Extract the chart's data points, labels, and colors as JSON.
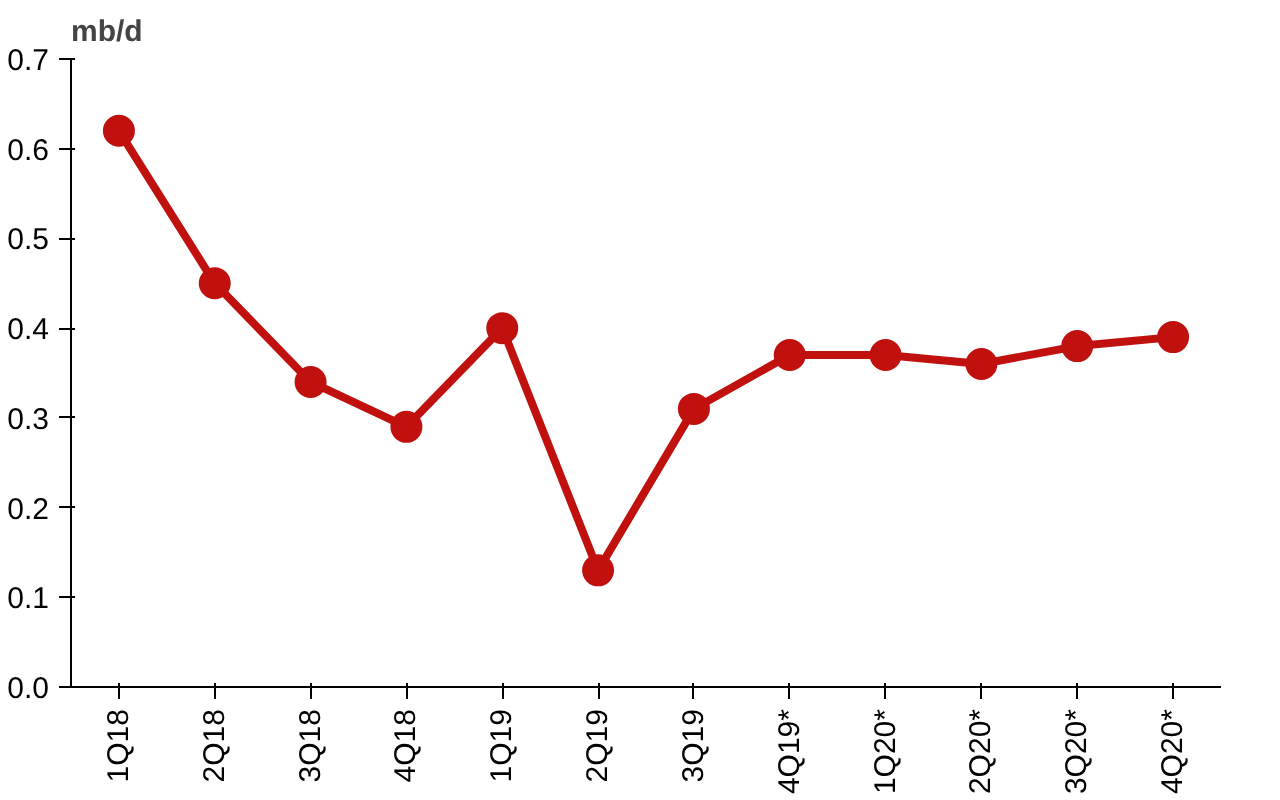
{
  "chart_data": {
    "type": "line",
    "ylabel": "mb/d",
    "categories": [
      "1Q18",
      "2Q18",
      "3Q18",
      "4Q18",
      "1Q19",
      "2Q19",
      "3Q19",
      "4Q19*",
      "1Q20*",
      "2Q20*",
      "3Q20*",
      "4Q20*"
    ],
    "series": [
      {
        "color": "#c0110f",
        "values": [
          0.62,
          0.45,
          0.34,
          0.29,
          0.4,
          0.13,
          0.31,
          0.37,
          0.37,
          0.36,
          0.38,
          0.39
        ]
      }
    ],
    "ylim": [
      0,
      0.7
    ],
    "yticks": [
      {
        "value": 0,
        "label": "0.0"
      },
      {
        "value": 0.1,
        "label": "0.1"
      },
      {
        "value": 0.2,
        "label": "0.2"
      },
      {
        "value": 0.3,
        "label": "0.3"
      },
      {
        "value": 0.4,
        "label": "0.4"
      },
      {
        "value": 0.5,
        "label": "0.5"
      },
      {
        "value": 0.6,
        "label": "0.6"
      },
      {
        "value": 0.7,
        "label": "0.7"
      }
    ],
    "grid": false,
    "marker": "circle",
    "line_style": "solid"
  }
}
